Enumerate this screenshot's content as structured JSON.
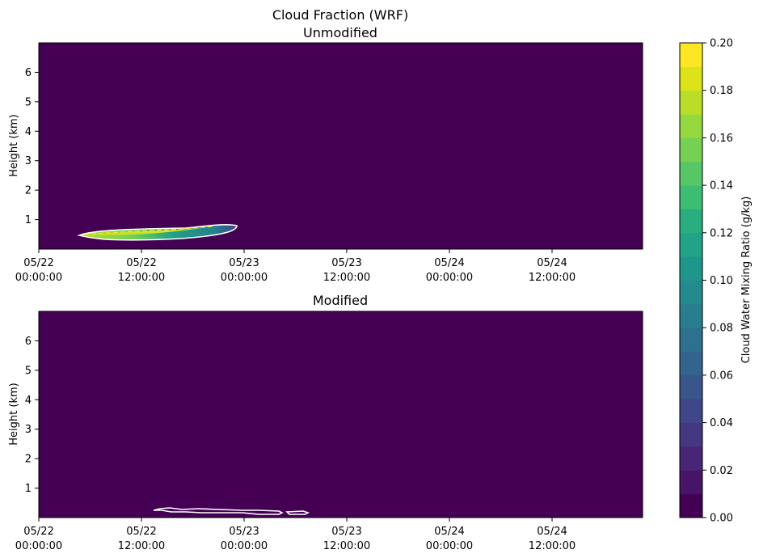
{
  "figure": {
    "title": "Cloud Fraction (WRF)"
  },
  "chart_data": [
    {
      "type": "heatmap",
      "title": "Unmodified",
      "ylabel": "Height (km)",
      "xlabel": "",
      "xlim": [
        "05/22 00:00:00",
        "05/24 21:00:00"
      ],
      "ylim": [
        0,
        7
      ],
      "xticks": [
        "05/22\n00:00:00",
        "05/22\n12:00:00",
        "05/23\n00:00:00",
        "05/23\n12:00:00",
        "05/24\n00:00:00",
        "05/24\n12:00:00"
      ],
      "yticks": [
        "1",
        "2",
        "3",
        "4",
        "5",
        "6"
      ],
      "background_value": 0.0,
      "cloud_region": {
        "x_start_hours": 4.7,
        "x_end_hours": 23.3,
        "height_km_range": [
          0.3,
          0.85
        ],
        "max_value": 0.2
      },
      "contour_color": "#ffffff"
    },
    {
      "type": "heatmap",
      "title": "Modified",
      "ylabel": "Height (km)",
      "xlabel": "",
      "xlim": [
        "05/22 00:00:00",
        "05/24 21:00:00"
      ],
      "ylim": [
        0,
        7
      ],
      "xticks": [
        "05/22\n00:00:00",
        "05/22\n12:00:00",
        "05/23\n00:00:00",
        "05/23\n12:00:00",
        "05/24\n00:00:00",
        "05/24\n12:00:00"
      ],
      "yticks": [
        "1",
        "2",
        "3",
        "4",
        "5",
        "6"
      ],
      "background_value": 0.0,
      "cloud_region": {
        "x_start_hours": 13.5,
        "x_end_hours": 31.5,
        "height_km_range": [
          0.1,
          0.3
        ],
        "max_value": 0.0
      },
      "contour_color": "#ffffff"
    }
  ],
  "colorbar": {
    "label": "Cloud Water Mixing Ratio (g/kg)",
    "colormap": "viridis",
    "levels": 20,
    "min": 0.0,
    "max": 0.2,
    "ticks": [
      "0.00",
      "0.02",
      "0.04",
      "0.06",
      "0.08",
      "0.10",
      "0.12",
      "0.14",
      "0.16",
      "0.18",
      "0.20"
    ]
  },
  "colors": {
    "background": "#440154",
    "contour": "#ffffff"
  }
}
